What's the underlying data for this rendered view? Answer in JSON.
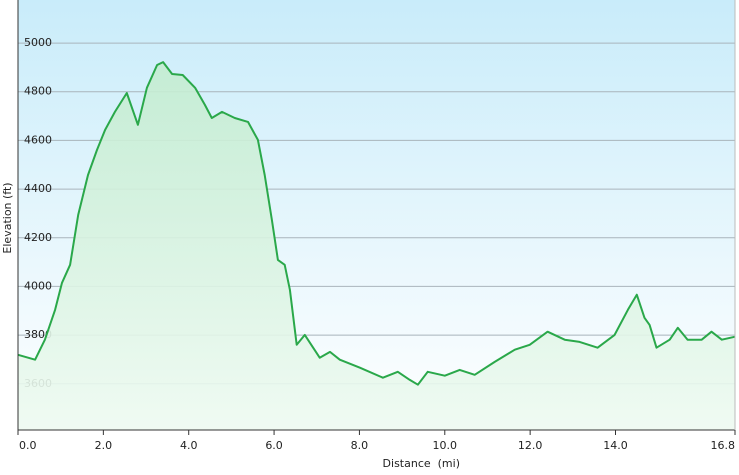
{
  "chart_data": {
    "type": "area",
    "x_label": "Distance  (mi)",
    "y_label": "Elevation (ft)",
    "x": [
      0,
      0.4,
      0.63,
      0.87,
      1.03,
      1.22,
      1.41,
      1.64,
      1.85,
      2.04,
      2.27,
      2.55,
      2.81,
      3.02,
      3.26,
      3.4,
      3.61,
      3.86,
      4.15,
      4.38,
      4.54,
      4.78,
      5.08,
      5.39,
      5.62,
      5.78,
      5.95,
      6.09,
      6.25,
      6.37,
      6.53,
      6.72,
      7.07,
      7.31,
      7.54,
      8.01,
      8.55,
      8.9,
      9.18,
      9.37,
      9.6,
      10.0,
      10.35,
      10.7,
      11.17,
      11.64,
      11.99,
      12.41,
      12.81,
      13.16,
      13.58,
      13.98,
      14.29,
      14.5,
      14.68,
      14.8,
      14.96,
      15.27,
      15.46,
      15.69,
      16.02,
      16.25,
      16.49,
      16.79
    ],
    "values": [
      3719,
      3699,
      3781,
      3904,
      4015,
      4089,
      4294,
      4458,
      4561,
      4643,
      4717,
      4795,
      4664,
      4816,
      4910,
      4922,
      4873,
      4869,
      4816,
      4746,
      4692,
      4717,
      4692,
      4676,
      4602,
      4458,
      4273,
      4109,
      4089,
      3986,
      3760,
      3801,
      3707,
      3731,
      3699,
      3666,
      3625,
      3649,
      3616,
      3596,
      3649,
      3633,
      3657,
      3637,
      3690,
      3740,
      3760,
      3814,
      3781,
      3772,
      3748,
      3801,
      3904,
      3966,
      3871,
      3842,
      3748,
      3781,
      3830,
      3781,
      3781,
      3814,
      3781,
      3793
    ],
    "color": "#2aa84a",
    "xlim": [
      0,
      16.8
    ],
    "xticks": [
      {
        "value": 0,
        "label": "0.0"
      },
      {
        "value": 2,
        "label": "2.0"
      },
      {
        "value": 4,
        "label": "4.0"
      },
      {
        "value": 6,
        "label": "6.0"
      },
      {
        "value": 8,
        "label": "8.0"
      },
      {
        "value": 10,
        "label": "10.0"
      },
      {
        "value": 12,
        "label": "12.0"
      },
      {
        "value": 14,
        "label": "14.0"
      },
      {
        "value": 16.8,
        "label": "16.8"
      }
    ],
    "ylim": [
      3410,
      5177
    ],
    "yticks": [
      3600,
      3800,
      4000,
      4200,
      4400,
      4600,
      4800,
      5000
    ],
    "grid": true
  }
}
